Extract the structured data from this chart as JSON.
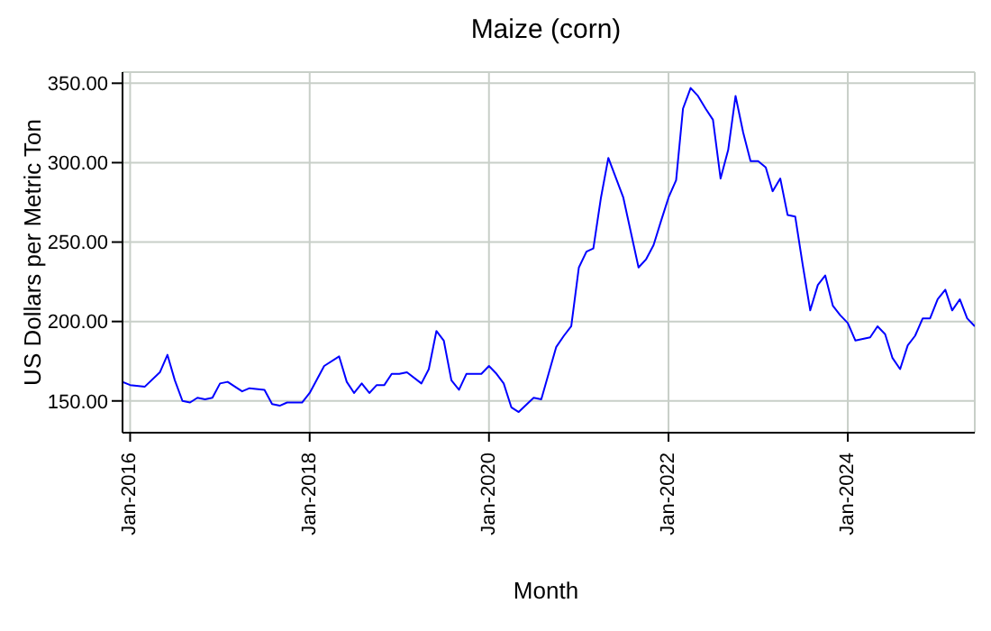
{
  "chart_data": {
    "type": "line",
    "title": "Maize (corn)",
    "xlabel": "Month",
    "ylabel": "US Dollars per Metric Ton",
    "x": [
      "2015-12",
      "2016-01",
      "2016-03",
      "2016-05",
      "2016-06",
      "2016-07",
      "2016-08",
      "2016-09",
      "2016-10",
      "2016-11",
      "2016-12",
      "2017-01",
      "2017-02",
      "2017-04",
      "2017-05",
      "2017-07",
      "2017-08",
      "2017-09",
      "2017-10",
      "2017-12",
      "2018-01",
      "2018-03",
      "2018-05",
      "2018-06",
      "2018-07",
      "2018-08",
      "2018-09",
      "2018-10",
      "2018-11",
      "2018-12",
      "2019-01",
      "2019-02",
      "2019-04",
      "2019-05",
      "2019-06",
      "2019-07",
      "2019-08",
      "2019-09",
      "2019-10",
      "2019-12",
      "2020-01",
      "2020-02",
      "2020-03",
      "2020-04",
      "2020-05",
      "2020-07",
      "2020-08",
      "2020-10",
      "2020-11",
      "2020-12",
      "2021-01",
      "2021-02",
      "2021-03",
      "2021-04",
      "2021-05",
      "2021-07",
      "2021-09",
      "2021-10",
      "2021-11",
      "2021-12",
      "2022-01",
      "2022-02",
      "2022-03",
      "2022-04",
      "2022-05",
      "2022-06",
      "2022-07",
      "2022-08",
      "2022-09",
      "2022-10",
      "2022-11",
      "2022-12",
      "2023-01",
      "2023-02",
      "2023-03",
      "2023-04",
      "2023-05",
      "2023-06",
      "2023-07",
      "2023-08",
      "2023-09",
      "2023-10",
      "2023-11",
      "2023-12",
      "2024-01",
      "2024-02",
      "2024-04",
      "2024-05",
      "2024-06",
      "2024-07",
      "2024-08",
      "2024-09",
      "2024-10",
      "2024-11",
      "2024-12",
      "2025-01",
      "2025-02",
      "2025-03",
      "2025-04",
      "2025-05",
      "2025-06"
    ],
    "series": [
      {
        "color": "#0000ff",
        "values": [
          162,
          160,
          159,
          168,
          179,
          163,
          150,
          149,
          152,
          151,
          152,
          161,
          162,
          156,
          158,
          157,
          148,
          147,
          149,
          149,
          155,
          172,
          178,
          162,
          155,
          161,
          155,
          160,
          160,
          167,
          167,
          168,
          161,
          170,
          194,
          188,
          163,
          157,
          167,
          167,
          172,
          167,
          161,
          146,
          143,
          152,
          151,
          184,
          191,
          197,
          234,
          244,
          246,
          278,
          303,
          278,
          234,
          239,
          248,
          263,
          278,
          289,
          334,
          347,
          342,
          334,
          327,
          290,
          308,
          342,
          319,
          301,
          301,
          297,
          282,
          290,
          267,
          266,
          236,
          207,
          223,
          229,
          210,
          204,
          199,
          188,
          190,
          197,
          192,
          177,
          170,
          185,
          191,
          202,
          202,
          214,
          220,
          207,
          214,
          202,
          197
        ]
      }
    ],
    "xlim": [
      "2015-12",
      "2025-06"
    ],
    "xticks": [
      {
        "value": "2016-01",
        "label": "Jan-2016"
      },
      {
        "value": "2018-01",
        "label": "Jan-2018"
      },
      {
        "value": "2020-01",
        "label": "Jan-2020"
      },
      {
        "value": "2022-01",
        "label": "Jan-2022"
      },
      {
        "value": "2024-01",
        "label": "Jan-2024"
      }
    ],
    "ylim": [
      130,
      357
    ],
    "yticks": [
      {
        "value": 150,
        "label": "150.00"
      },
      {
        "value": 200,
        "label": "200.00"
      },
      {
        "value": 250,
        "label": "250.00"
      },
      {
        "value": 300,
        "label": "300.00"
      },
      {
        "value": 350,
        "label": "350.00"
      }
    ],
    "grid": true,
    "legend": false,
    "marker": "none",
    "line_style": "solid"
  }
}
